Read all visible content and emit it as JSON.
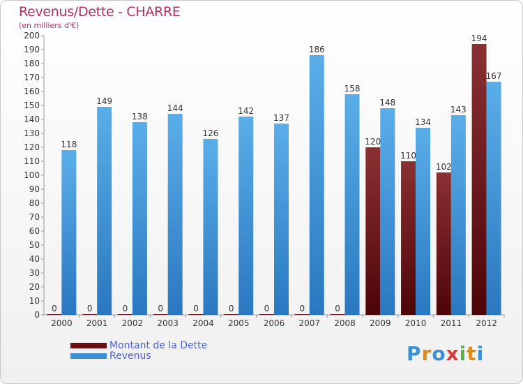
{
  "title": "Revenus/Dette - CHARRE",
  "subtitle": "(en milliers d'€)",
  "logo": "Proxiti",
  "colors": {
    "dette": "#6b0f12",
    "revenus": "#3a8fd6",
    "title": "#b0306a",
    "legend_text": "#4a5fd6"
  },
  "chart_data": {
    "type": "bar",
    "categories": [
      "2000",
      "2001",
      "2002",
      "2003",
      "2004",
      "2005",
      "2006",
      "2007",
      "2008",
      "2009",
      "2010",
      "2011",
      "2012"
    ],
    "series": [
      {
        "name": "Montant de la Dette",
        "values": [
          0,
          0,
          0,
          0,
          0,
          0,
          0,
          0,
          0,
          120,
          110,
          102,
          194
        ]
      },
      {
        "name": "Revenus",
        "values": [
          118,
          149,
          138,
          144,
          126,
          142,
          137,
          186,
          158,
          148,
          134,
          143,
          167
        ]
      }
    ],
    "ylim": [
      0,
      200
    ],
    "ytick_step": 10,
    "grid": false,
    "legend": "bottom-left"
  }
}
